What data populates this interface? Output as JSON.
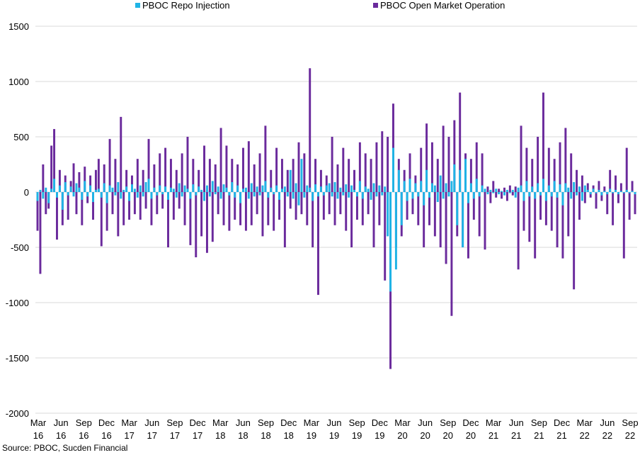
{
  "legend": {
    "repo_label": "PBOC Repo Injection",
    "omo_label": "PBOC Open Market Operation"
  },
  "source": "Source: PBOC, Sucden Financial",
  "colors": {
    "repo": "#1fb4e6",
    "omo": "#6a2a9c",
    "grid": "#d9d9d9"
  },
  "chart_data": {
    "type": "bar",
    "ylim": [
      -2000,
      1500
    ],
    "yticks": [
      1500,
      1000,
      500,
      0,
      -500,
      -1000,
      -1500,
      -2000
    ],
    "xticks": [
      [
        "Mar",
        "16"
      ],
      [
        "Jun",
        "16"
      ],
      [
        "Sep",
        "16"
      ],
      [
        "Dec",
        "16"
      ],
      [
        "Mar",
        "17"
      ],
      [
        "Jun",
        "17"
      ],
      [
        "Sep",
        "17"
      ],
      [
        "Dec",
        "17"
      ],
      [
        "Mar",
        "18"
      ],
      [
        "Jun",
        "18"
      ],
      [
        "Sep",
        "18"
      ],
      [
        "Dec",
        "18"
      ],
      [
        "Mar",
        "19"
      ],
      [
        "Jun",
        "19"
      ],
      [
        "Sep",
        "19"
      ],
      [
        "Dec",
        "19"
      ],
      [
        "Mar",
        "20"
      ],
      [
        "Jun",
        "20"
      ],
      [
        "Sep",
        "20"
      ],
      [
        "Dec",
        "20"
      ],
      [
        "Mar",
        "21"
      ],
      [
        "Jun",
        "21"
      ],
      [
        "Sep",
        "21"
      ],
      [
        "Dec",
        "21"
      ],
      [
        "Mar",
        "22"
      ],
      [
        "Jun",
        "22"
      ],
      [
        "Sep",
        "22"
      ]
    ],
    "series": [
      {
        "name": "PBOC Repo Injection",
        "color": "#1fb4e6",
        "values": [
          -80,
          20,
          -60,
          40,
          -100,
          30,
          120,
          -50,
          60,
          -160,
          90,
          -30,
          50,
          -40,
          80,
          40,
          -70,
          100,
          -40,
          60,
          -90,
          20,
          30,
          -50,
          80,
          -100,
          60,
          40,
          -30,
          90,
          -60,
          20,
          50,
          -80,
          70,
          30,
          -50,
          60,
          -40,
          90,
          120,
          -60,
          40,
          -30,
          60,
          -20,
          50,
          -70,
          40,
          30,
          -50,
          80,
          -40,
          60,
          30,
          -60,
          70,
          -30,
          50,
          20,
          -80,
          60,
          -40,
          100,
          -20,
          50,
          -60,
          70,
          40,
          -30,
          90,
          -50,
          60,
          -100,
          30,
          40,
          -60,
          80,
          -40,
          50,
          -30,
          60,
          100,
          -50,
          40,
          -20,
          60,
          -70,
          30,
          50,
          -40,
          200,
          -60,
          80,
          -120,
          300,
          -50,
          60,
          40,
          -80,
          70,
          -40,
          50,
          -30,
          60,
          80,
          -40,
          90,
          -60,
          40,
          -30,
          70,
          -50,
          60,
          20,
          -40,
          100,
          -60,
          50,
          30,
          -70,
          80,
          -40,
          60,
          -30,
          50,
          -400,
          -900,
          400,
          -700,
          200,
          -300,
          100,
          -80,
          120,
          -60,
          80,
          -40,
          100,
          -120,
          200,
          -50,
          80,
          60,
          -90,
          150,
          -60,
          80,
          -40,
          100,
          250,
          -300,
          200,
          -500,
          300,
          -100,
          80,
          -60,
          120,
          -40,
          60,
          30,
          -20,
          20,
          -10,
          30,
          -20,
          10,
          -30,
          20,
          -10,
          20,
          -50,
          40,
          60,
          -80,
          100,
          -40,
          50,
          -60,
          80,
          -30,
          120,
          -80,
          60,
          -40,
          100,
          -50,
          70,
          -120,
          80,
          40,
          -60,
          90,
          -30,
          50,
          -80,
          60,
          20,
          -20,
          30,
          -10,
          20,
          -30,
          10,
          -20,
          30,
          -10,
          20,
          -20,
          10,
          -10,
          20,
          -10,
          10,
          -20
        ]
      },
      {
        "name": "PBOC Open Market Operation",
        "color": "#6a2a9c",
        "values": [
          -350,
          -740,
          250,
          -200,
          -150,
          420,
          570,
          -430,
          200,
          -300,
          150,
          -250,
          100,
          260,
          -200,
          180,
          -300,
          230,
          -100,
          150,
          -250,
          200,
          300,
          -490,
          250,
          -350,
          480,
          -200,
          300,
          -400,
          680,
          -300,
          200,
          -250,
          150,
          -200,
          300,
          -250,
          200,
          -150,
          480,
          -300,
          250,
          -200,
          350,
          -150,
          400,
          -500,
          300,
          -250,
          200,
          -150,
          350,
          -300,
          500,
          -480,
          300,
          -590,
          200,
          -400,
          420,
          -550,
          300,
          -450,
          250,
          -200,
          580,
          -300,
          420,
          -350,
          300,
          -250,
          250,
          -300,
          400,
          -350,
          460,
          -300,
          250,
          -200,
          350,
          -400,
          600,
          -300,
          200,
          -350,
          400,
          -250,
          300,
          -500,
          200,
          -150,
          300,
          -250,
          450,
          -200,
          350,
          -300,
          1120,
          -500,
          300,
          -930,
          200,
          -250,
          150,
          -200,
          500,
          -300,
          250,
          -200,
          400,
          -350,
          300,
          -500,
          200,
          -250,
          450,
          -300,
          350,
          -200,
          300,
          -500,
          450,
          -300,
          550,
          -800,
          500,
          -1600,
          800,
          -500,
          300,
          -400,
          200,
          -250,
          350,
          -200,
          150,
          -300,
          400,
          -500,
          620,
          -300,
          450,
          -400,
          300,
          -500,
          600,
          -650,
          500,
          -1120,
          650,
          -400,
          900,
          -500,
          350,
          -600,
          300,
          -250,
          450,
          -400,
          350,
          -520,
          50,
          -100,
          100,
          -50,
          30,
          -60,
          40,
          -80,
          60,
          -30,
          50,
          -700,
          600,
          -350,
          400,
          -450,
          300,
          -600,
          500,
          -250,
          900,
          -300,
          400,
          -350,
          300,
          -500,
          450,
          -600,
          580,
          -400,
          350,
          -880,
          200,
          -250,
          150,
          -100,
          80,
          -50,
          60,
          -150,
          100,
          -80,
          50,
          -200,
          200,
          -300,
          150,
          -100,
          80,
          -600,
          400,
          -250,
          100,
          -200
        ]
      }
    ]
  }
}
